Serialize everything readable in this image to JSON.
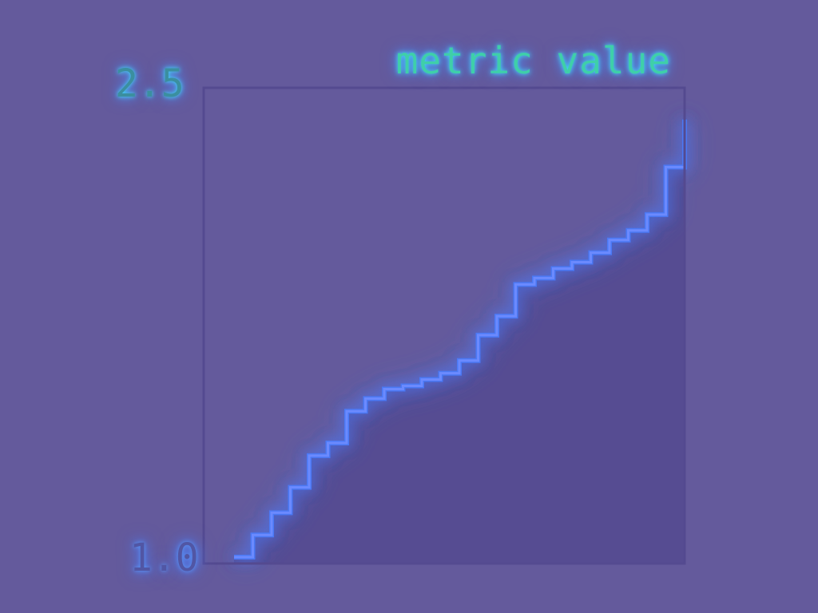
{
  "chart_data": {
    "type": "area",
    "title": "metric value",
    "xlabel": "",
    "ylabel": "",
    "ylim": [
      1.0,
      2.5
    ],
    "ytick_labels": [
      "2.5",
      "1.0"
    ],
    "x": [
      0,
      1,
      2,
      3,
      4,
      5,
      6,
      7,
      8,
      9,
      10,
      11,
      12,
      13,
      14,
      15,
      16,
      17,
      18,
      19,
      20,
      21,
      22,
      23,
      24
    ],
    "values": [
      1.02,
      1.09,
      1.16,
      1.24,
      1.34,
      1.38,
      1.48,
      1.52,
      1.55,
      1.56,
      1.58,
      1.6,
      1.64,
      1.72,
      1.78,
      1.88,
      1.9,
      1.93,
      1.95,
      1.98,
      2.02,
      2.05,
      2.1,
      2.25,
      2.4
    ],
    "grid": false,
    "legend": "none",
    "colors": {
      "background": "#645a9c",
      "fill": "#554c91",
      "glow": "#4a7dff",
      "text": "#3fcfa9",
      "frame": "#544a90"
    }
  }
}
